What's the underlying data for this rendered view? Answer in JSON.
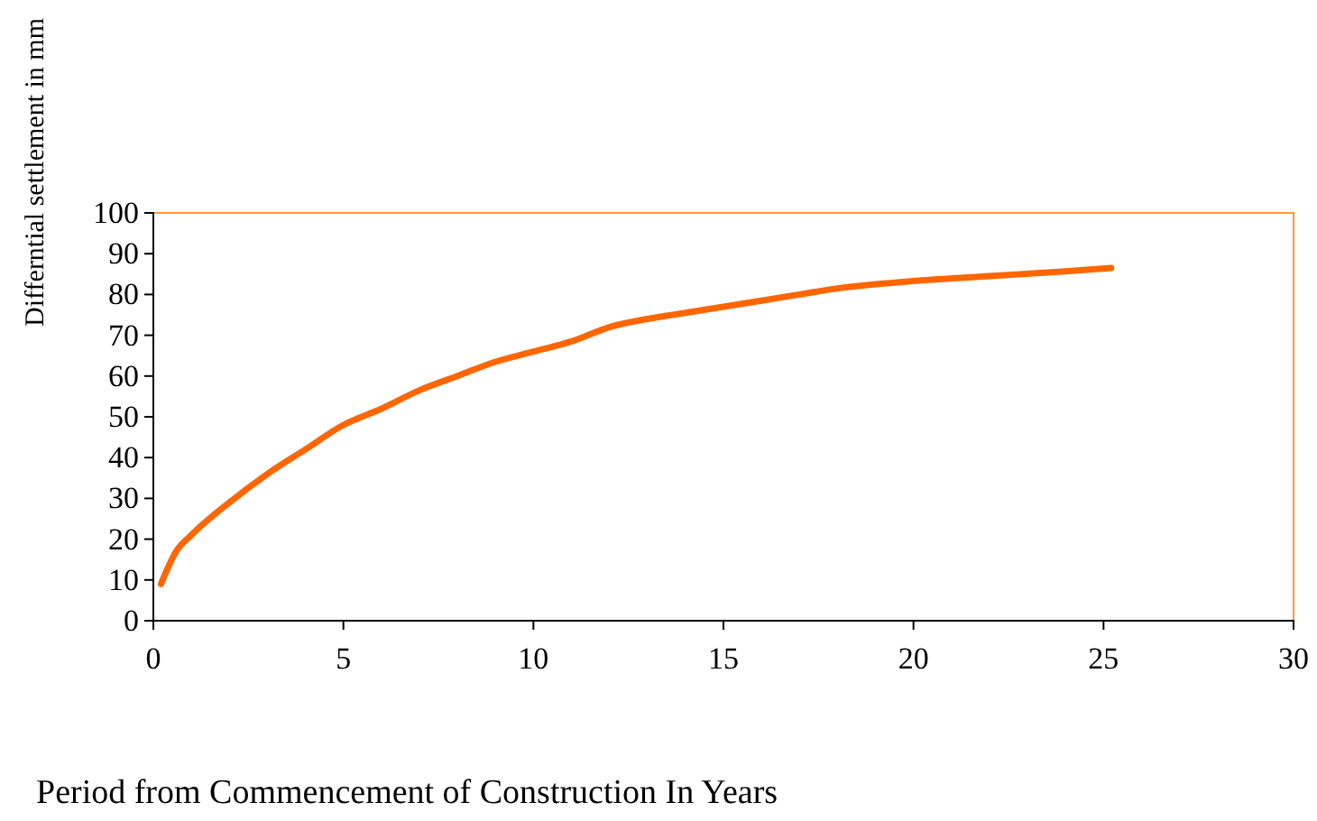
{
  "chart_data": {
    "type": "line",
    "xlabel": "Period from Commencement of Construction In Years",
    "ylabel": "Differntial settlement in mm",
    "x": [
      0.2,
      0.6,
      1,
      2,
      3,
      4,
      5,
      6,
      7,
      8,
      9,
      10,
      11,
      12,
      13,
      14,
      15,
      16,
      17,
      18,
      19,
      20,
      22,
      24,
      25.2
    ],
    "series": [
      {
        "color": "#ff6600",
        "values": [
          9,
          17,
          21,
          29,
          36,
          42,
          48,
          52,
          56.5,
          60,
          63.5,
          66,
          68.5,
          72,
          74,
          75.5,
          77,
          78.5,
          80,
          81.5,
          82.5,
          83.3,
          84.5,
          85.7,
          86.5
        ]
      }
    ],
    "xlim": [
      0,
      30
    ],
    "xticks": [
      0,
      5,
      10,
      15,
      20,
      25,
      30
    ],
    "ylim": [
      0,
      100
    ],
    "yticks": [
      0,
      10,
      20,
      30,
      40,
      50,
      60,
      70,
      80,
      90,
      100
    ],
    "grid": false,
    "marker": "none",
    "line_style": "solid"
  }
}
